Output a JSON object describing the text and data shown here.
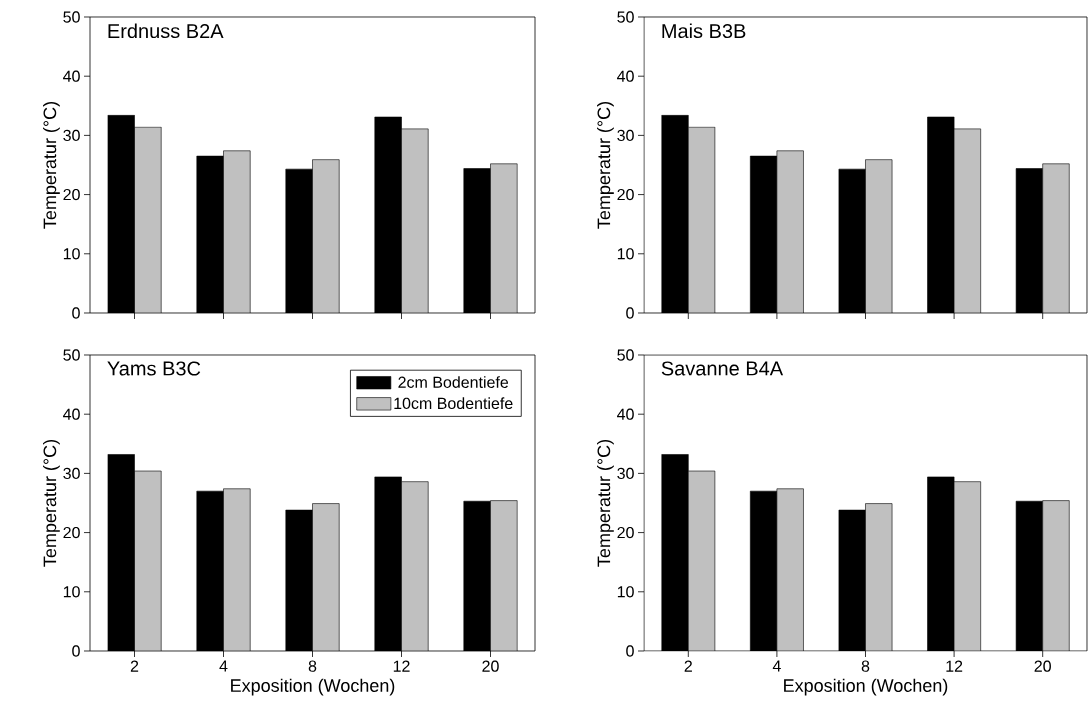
{
  "chart_data": [
    {
      "type": "bar",
      "title": "Erdnuss B2A",
      "ylabel": "Temperatur (°C)",
      "categories": [
        "2",
        "4",
        "8",
        "12",
        "20"
      ],
      "ylim": [
        0,
        50
      ],
      "yticks": [
        0,
        10,
        20,
        30,
        40,
        50
      ],
      "tick_labels": "y",
      "legend": false,
      "series": [
        {
          "color": "#000000",
          "values": [
            33.4,
            26.5,
            24.3,
            33.1,
            24.4
          ]
        },
        {
          "color": "#c0c0c0",
          "values": [
            31.4,
            27.4,
            25.9,
            31.1,
            25.2
          ]
        }
      ]
    },
    {
      "type": "bar",
      "title": "Mais B3B",
      "ylabel": "Temperatur (°C)",
      "categories": [
        "2",
        "4",
        "8",
        "12",
        "20"
      ],
      "ylim": [
        0,
        50
      ],
      "yticks": [
        0,
        10,
        20,
        30,
        40,
        50
      ],
      "tick_labels": "y",
      "legend": false,
      "series": [
        {
          "color": "#000000",
          "values": [
            33.4,
            26.5,
            24.3,
            33.1,
            24.4
          ]
        },
        {
          "color": "#c0c0c0",
          "values": [
            31.4,
            27.4,
            25.9,
            31.1,
            25.2
          ]
        }
      ]
    },
    {
      "type": "bar",
      "title": "Yams B3C",
      "xlabel": "Exposition (Wochen)",
      "ylabel": "Temperatur (°C)",
      "categories": [
        "2",
        "4",
        "8",
        "12",
        "20"
      ],
      "ylim": [
        0,
        50
      ],
      "yticks": [
        0,
        10,
        20,
        30,
        40,
        50
      ],
      "legend": "top right",
      "series": [
        {
          "name": "2cm Bodentiefe",
          "color": "#000000",
          "values": [
            33.2,
            27.0,
            23.8,
            29.4,
            25.3
          ]
        },
        {
          "name": "10cm Bodentiefe",
          "color": "#c0c0c0",
          "values": [
            30.4,
            27.4,
            24.9,
            28.6,
            25.4
          ]
        }
      ]
    },
    {
      "type": "bar",
      "title": "Savanne B4A",
      "xlabel": "Exposition (Wochen)",
      "ylabel": "Temperatur (°C)",
      "categories": [
        "2",
        "4",
        "8",
        "12",
        "20"
      ],
      "ylim": [
        0,
        50
      ],
      "yticks": [
        0,
        10,
        20,
        30,
        40,
        50
      ],
      "legend": false,
      "series": [
        {
          "color": "#000000",
          "values": [
            33.2,
            27.0,
            23.8,
            29.4,
            25.3
          ]
        },
        {
          "color": "#c0c0c0",
          "values": [
            30.4,
            27.4,
            24.9,
            28.6,
            25.4
          ]
        }
      ]
    }
  ]
}
